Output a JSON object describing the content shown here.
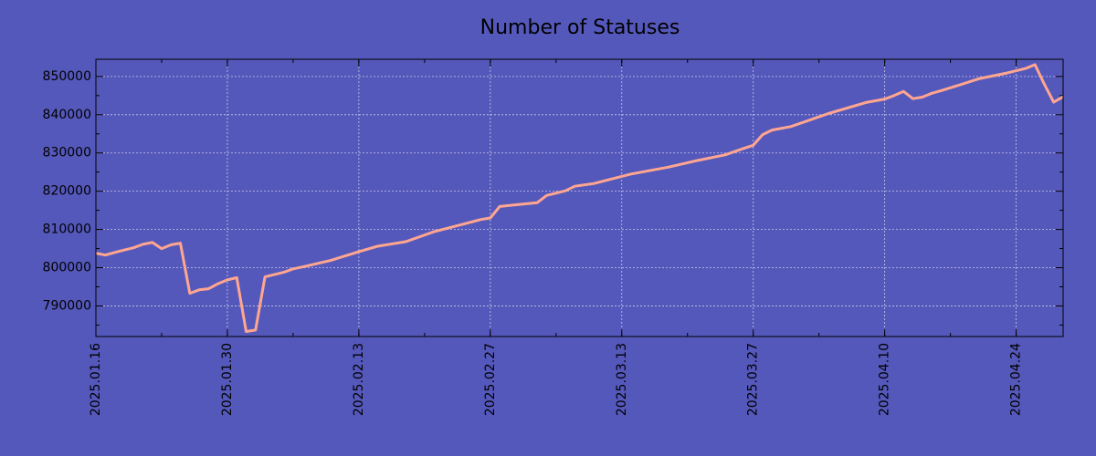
{
  "colors": {
    "background": "#5558bb",
    "line": "#ffa690",
    "grid": "#c8c8e6",
    "axis": "#000000"
  },
  "chart_data": {
    "type": "line",
    "title": "Number of Statuses",
    "xlabel": "",
    "ylabel": "",
    "grid": true,
    "legend": "none",
    "xlim": [
      "2025-01-16",
      "2025-04-29"
    ],
    "ylim": [
      782000,
      854500
    ],
    "x_tick_labels": [
      "2025.01.16",
      "2025.01.30",
      "2025.02.13",
      "2025.02.27",
      "2025.03.13",
      "2025.03.27",
      "2025.04.10",
      "2025.04.24"
    ],
    "y_tick_labels": [
      "790000",
      "800000",
      "810000",
      "820000",
      "830000",
      "840000",
      "850000"
    ],
    "series": [
      {
        "x": [
          "2025-01-16",
          "2025-01-17",
          "2025-01-18",
          "2025-01-19",
          "2025-01-20",
          "2025-01-21",
          "2025-01-22",
          "2025-01-23",
          "2025-01-24",
          "2025-01-25",
          "2025-01-26",
          "2025-01-27",
          "2025-01-28",
          "2025-01-29",
          "2025-01-30",
          "2025-01-31",
          "2025-02-01",
          "2025-02-02",
          "2025-02-03",
          "2025-02-04",
          "2025-02-05",
          "2025-02-06",
          "2025-02-07",
          "2025-02-10",
          "2025-02-13",
          "2025-02-15",
          "2025-02-18",
          "2025-02-21",
          "2025-02-24",
          "2025-02-26",
          "2025-02-27",
          "2025-02-28",
          "2025-03-02",
          "2025-03-04",
          "2025-03-05",
          "2025-03-07",
          "2025-03-08",
          "2025-03-10",
          "2025-03-14",
          "2025-03-18",
          "2025-03-21",
          "2025-03-24",
          "2025-03-26",
          "2025-03-27",
          "2025-03-28",
          "2025-03-29",
          "2025-03-31",
          "2025-04-04",
          "2025-04-08",
          "2025-04-10",
          "2025-04-11",
          "2025-04-12",
          "2025-04-13",
          "2025-04-14",
          "2025-04-15",
          "2025-04-16",
          "2025-04-18",
          "2025-04-20",
          "2025-04-23",
          "2025-04-25",
          "2025-04-26",
          "2025-04-27",
          "2025-04-28",
          "2025-04-29"
        ],
        "y": [
          803800,
          803300,
          804000,
          804600,
          805200,
          806100,
          806600,
          805000,
          806000,
          806400,
          793300,
          794200,
          794500,
          795800,
          796800,
          797400,
          783300,
          783700,
          797600,
          798200,
          798800,
          799700,
          800200,
          801900,
          804200,
          805600,
          806800,
          809400,
          811300,
          812600,
          813000,
          816000,
          816500,
          817000,
          818900,
          820100,
          821300,
          822000,
          824500,
          826300,
          828000,
          829500,
          831200,
          832000,
          834800,
          836000,
          836900,
          840300,
          843200,
          844100,
          845000,
          846100,
          844200,
          844600,
          845600,
          846300,
          847800,
          849400,
          850900,
          852100,
          853100,
          848000,
          843300,
          844700
        ]
      }
    ]
  }
}
